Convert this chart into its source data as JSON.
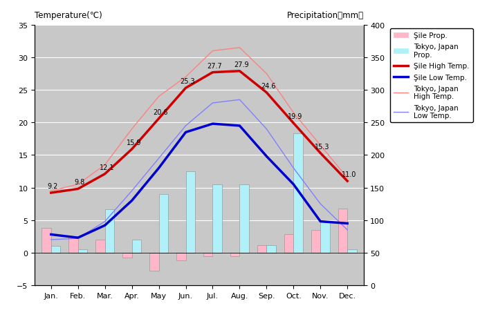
{
  "months": [
    "Jan.",
    "Feb.",
    "Mar.",
    "Apr.",
    "May",
    "Jun.",
    "Jul.",
    "Aug.",
    "Sep.",
    "Oct.",
    "Nov.",
    "Dec."
  ],
  "sile_high_temp": [
    9.2,
    9.8,
    12.1,
    15.9,
    20.6,
    25.3,
    27.7,
    27.9,
    24.6,
    19.9,
    15.3,
    11.0
  ],
  "sile_low_temp": [
    2.8,
    2.3,
    4.2,
    8.0,
    13.0,
    18.5,
    19.8,
    19.5,
    14.8,
    10.5,
    4.8,
    4.5
  ],
  "tokyo_high_temp": [
    9.5,
    10.5,
    13.5,
    19.0,
    24.0,
    27.0,
    31.0,
    31.5,
    27.5,
    21.5,
    16.5,
    11.5
  ],
  "tokyo_low_temp": [
    2.0,
    2.2,
    4.8,
    9.5,
    14.5,
    19.5,
    23.0,
    23.5,
    19.0,
    13.0,
    7.5,
    3.5
  ],
  "sile_bar": [
    3.8,
    2.5,
    2.0,
    -0.8,
    -2.8,
    -1.2,
    -0.5,
    -0.5,
    1.2,
    2.8,
    3.5,
    6.8
  ],
  "tokyo_bar": [
    1.0,
    0.5,
    6.7,
    2.0,
    9.0,
    12.5,
    10.5,
    10.5,
    1.2,
    18.3,
    4.8,
    0.5
  ],
  "bg_color": "#c8c8c8",
  "sile_high_color": "#cc0000",
  "sile_low_color": "#0000cc",
  "tokyo_high_color": "#ff8080",
  "tokyo_low_color": "#8080ff",
  "sile_bar_color": "#ffb6c8",
  "tokyo_bar_color": "#b0f0f8",
  "ylim_temp": [
    -5,
    35
  ],
  "ylim_precip": [
    0,
    400
  ],
  "temp_yticks": [
    -5,
    0,
    5,
    10,
    15,
    20,
    25,
    30,
    35
  ],
  "precip_yticks": [
    0,
    50,
    100,
    150,
    200,
    250,
    300,
    350,
    400
  ],
  "title_left": "Temperature(℃)",
  "title_right": "Precipitation（mm）"
}
